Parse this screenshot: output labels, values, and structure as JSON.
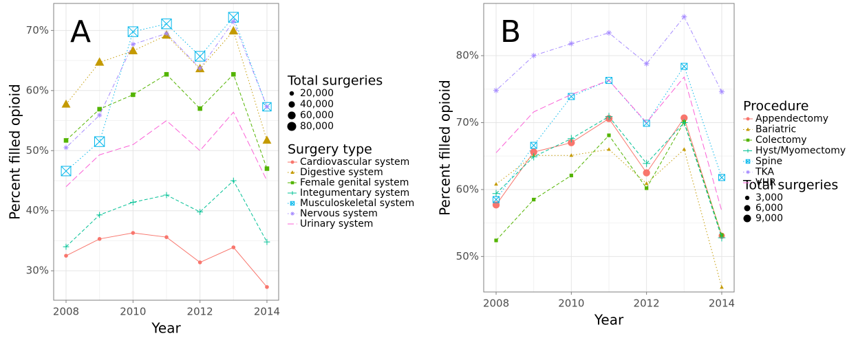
{
  "chart_data": [
    {
      "type": "line",
      "panel_label": "A",
      "x_label": "Year",
      "y_label": "Percent filled opioid",
      "x": [
        2008,
        2009,
        2010,
        2011,
        2012,
        2013,
        2014
      ],
      "xlim": [
        2007.63,
        2014.35
      ],
      "xticks": [
        2008,
        2010,
        2012,
        2014
      ],
      "ylim": [
        25.1,
        74.5
      ],
      "yticks": [
        {
          "value": 30,
          "label": "30%"
        },
        {
          "value": 40,
          "label": "40%"
        },
        {
          "value": 50,
          "label": "50%"
        },
        {
          "value": 60,
          "label": "60%"
        },
        {
          "value": 70,
          "label": "70%"
        }
      ],
      "grid": true,
      "legend": "right",
      "legend_title": "Surgery type",
      "size_legend": {
        "title": "Total surgeries",
        "values": [
          {
            "value": 20000,
            "label": "20,000"
          },
          {
            "value": 40000,
            "label": "40,000"
          },
          {
            "value": 60000,
            "label": "60,000"
          },
          {
            "value": 80000,
            "label": "80,000"
          }
        ]
      },
      "series": [
        {
          "name": "Cardiovascular system",
          "color": "#F8766D",
          "marker": "circle",
          "dash": "solid",
          "values": [
            32.5,
            35.3,
            36.3,
            35.6,
            31.4,
            33.9,
            27.3
          ],
          "sizes": [
            15000,
            15000,
            15000,
            15000,
            15000,
            15000,
            15000
          ]
        },
        {
          "name": "Digestive system",
          "color": "#C49A00",
          "marker": "triangle",
          "dash": "dotted",
          "values": [
            57.7,
            64.7,
            66.6,
            69.2,
            63.6,
            69.9,
            51.7
          ],
          "sizes": [
            65000,
            70000,
            70000,
            70000,
            70000,
            70000,
            65000
          ]
        },
        {
          "name": "Female genital system",
          "color": "#53B400",
          "marker": "square",
          "dash": "dashed",
          "values": [
            51.7,
            56.9,
            59.3,
            62.7,
            57.0,
            62.7,
            47.0
          ],
          "sizes": [
            25000,
            25000,
            25000,
            25000,
            25000,
            25000,
            25000
          ]
        },
        {
          "name": "Integumentary system",
          "color": "#00C094",
          "marker": "plus",
          "dash": "dashed",
          "values": [
            34.0,
            39.3,
            41.4,
            42.6,
            39.8,
            45.0,
            34.8
          ],
          "sizes": [
            30000,
            30000,
            30000,
            30000,
            30000,
            30000,
            30000
          ]
        },
        {
          "name": "Musculoskeletal system",
          "color": "#00B6EB",
          "marker": "boxx",
          "dash": "dotted",
          "values": [
            46.6,
            51.5,
            69.8,
            71.1,
            65.7,
            72.2,
            57.3
          ],
          "sizes": [
            75000,
            80000,
            80000,
            80000,
            80000,
            80000,
            60000
          ]
        },
        {
          "name": "Nervous system",
          "color": "#A58AFF",
          "marker": "asterisk",
          "dash": "dotdash",
          "values": [
            50.5,
            55.9,
            67.7,
            69.5,
            63.7,
            71.5,
            57.3
          ],
          "sizes": [
            20000,
            20000,
            20000,
            20000,
            20000,
            20000,
            20000
          ]
        },
        {
          "name": "Urinary system",
          "color": "#FB61D7",
          "marker": "none",
          "dash": "longdash",
          "values": [
            44.0,
            49.3,
            51.0,
            55.0,
            50.0,
            56.4,
            45.0
          ]
        }
      ]
    },
    {
      "type": "line",
      "panel_label": "B",
      "x_label": "Year",
      "y_label": "Percent filled opioid",
      "x": [
        2008,
        2009,
        2010,
        2011,
        2012,
        2013,
        2014
      ],
      "xlim": [
        2007.67,
        2014.33
      ],
      "xticks": [
        2008,
        2010,
        2012,
        2014
      ],
      "ylim": [
        44.7,
        87.8
      ],
      "yticks": [
        {
          "value": 50,
          "label": "50%"
        },
        {
          "value": 60,
          "label": "60%"
        },
        {
          "value": 70,
          "label": "70%"
        },
        {
          "value": 80,
          "label": "80%"
        }
      ],
      "grid": true,
      "legend": "right",
      "legend_title": "Procedure",
      "size_legend": {
        "title": "Total surgeries",
        "values": [
          {
            "value": 3000,
            "label": "3,000"
          },
          {
            "value": 6000,
            "label": "6,000"
          },
          {
            "value": 9000,
            "label": "9,000"
          }
        ]
      },
      "series": [
        {
          "name": "Appendectomy",
          "color": "#F8766D",
          "marker": "circle",
          "dash": "solid",
          "values": [
            57.7,
            65.6,
            67.0,
            70.6,
            62.5,
            70.7,
            53.1
          ],
          "sizes": [
            8000,
            8000,
            8000,
            8000,
            8000,
            8000,
            6000
          ]
        },
        {
          "name": "Bariatric",
          "color": "#C49A00",
          "marker": "triangle",
          "dash": "dotted",
          "values": [
            60.8,
            65.1,
            65.1,
            66.0,
            60.9,
            66.0,
            45.4
          ],
          "sizes": [
            2000,
            2000,
            2000,
            2000,
            2000,
            2000,
            2000
          ]
        },
        {
          "name": "Colectomy",
          "color": "#53B400",
          "marker": "square",
          "dash": "dashed",
          "values": [
            52.4,
            58.5,
            62.1,
            68.1,
            60.2,
            70.1,
            53.2
          ],
          "sizes": [
            2500,
            2500,
            2500,
            2500,
            2500,
            2500,
            2500
          ]
        },
        {
          "name": "Hyst/Myomectomy",
          "color": "#00C094",
          "marker": "plus",
          "dash": "dashed",
          "values": [
            59.4,
            64.9,
            67.6,
            70.9,
            63.9,
            70.0,
            52.8
          ],
          "sizes": [
            7000,
            7000,
            7000,
            7000,
            7000,
            7000,
            7000
          ]
        },
        {
          "name": "Spine",
          "color": "#00B6EB",
          "marker": "boxx",
          "dash": "dotted",
          "values": [
            58.5,
            66.6,
            73.9,
            76.3,
            69.9,
            78.4,
            61.8
          ],
          "sizes": [
            5000,
            5000,
            5000,
            5000,
            5000,
            5000,
            5000
          ]
        },
        {
          "name": "TKA",
          "color": "#A58AFF",
          "marker": "asterisk",
          "dash": "dotdash",
          "values": [
            74.8,
            80.0,
            81.8,
            83.4,
            78.8,
            85.8,
            74.6
          ],
          "sizes": [
            4000,
            4000,
            4000,
            4000,
            4000,
            4000,
            4000
          ]
        },
        {
          "name": "VHR",
          "color": "#FB61D7",
          "marker": "none",
          "dash": "longdash",
          "values": [
            65.5,
            71.6,
            74.2,
            76.3,
            70.0,
            76.8,
            56.8
          ]
        }
      ]
    }
  ]
}
